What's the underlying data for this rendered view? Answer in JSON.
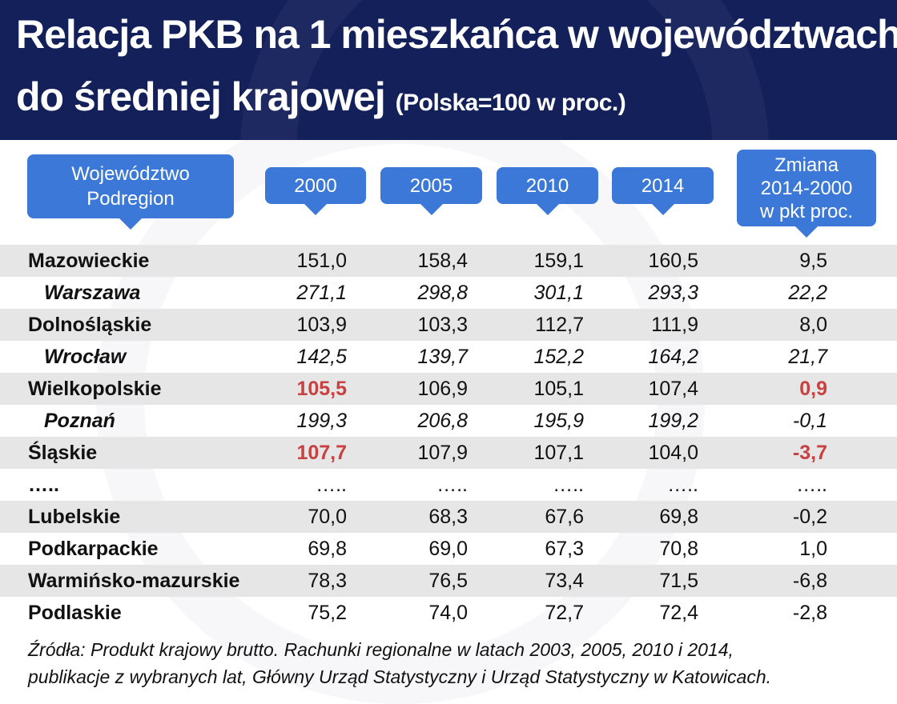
{
  "title_line1": "Relacja PKB na 1 mieszkańca w województwach",
  "title_line2": "do średniej krajowej",
  "subtitle": "(Polska=100 w proc.)",
  "colors": {
    "header_bg": "#14205a",
    "pill": "#3b78d8",
    "highlight": "#c94040",
    "row_shade": "#e6e6e6"
  },
  "headers": {
    "region": "Województwo\nPodregion",
    "y2000": "2000",
    "y2005": "2005",
    "y2010": "2010",
    "y2014": "2014",
    "change": "Zmiana\n2014-2000\nw pkt proc."
  },
  "chart_data": {
    "type": "table",
    "columns": [
      "Województwo Podregion",
      "2000",
      "2005",
      "2010",
      "2014",
      "Zmiana 2014-2000 w pkt proc."
    ],
    "rows": [
      {
        "name": "Mazowieckie",
        "sub": false,
        "shade": true,
        "values": [
          "151,0",
          "158,4",
          "159,1",
          "160,5",
          "9,5"
        ],
        "highlight": []
      },
      {
        "name": "Warszawa",
        "sub": true,
        "shade": false,
        "values": [
          "271,1",
          "298,8",
          "301,1",
          "293,3",
          "22,2"
        ],
        "highlight": []
      },
      {
        "name": "Dolnośląskie",
        "sub": false,
        "shade": true,
        "values": [
          "103,9",
          "103,3",
          "112,7",
          "111,9",
          "8,0"
        ],
        "highlight": []
      },
      {
        "name": "Wrocław",
        "sub": true,
        "shade": false,
        "values": [
          "142,5",
          "139,7",
          "152,2",
          "164,2",
          "21,7"
        ],
        "highlight": []
      },
      {
        "name": "Wielkopolskie",
        "sub": false,
        "shade": true,
        "values": [
          "105,5",
          "106,9",
          "105,1",
          "107,4",
          "0,9"
        ],
        "highlight": [
          0,
          4
        ]
      },
      {
        "name": "Poznań",
        "sub": true,
        "shade": false,
        "values": [
          "199,3",
          "206,8",
          "195,9",
          "199,2",
          "-0,1"
        ],
        "highlight": []
      },
      {
        "name": "Śląskie",
        "sub": false,
        "shade": true,
        "values": [
          "107,7",
          "107,9",
          "107,1",
          "104,0",
          "-3,7"
        ],
        "highlight": [
          0,
          4
        ]
      },
      {
        "name": "…..",
        "sub": false,
        "shade": false,
        "values": [
          "…..",
          "…..",
          "…..",
          "…..",
          "….."
        ],
        "highlight": []
      },
      {
        "name": "Lubelskie",
        "sub": false,
        "shade": true,
        "values": [
          "70,0",
          "68,3",
          "67,6",
          "69,8",
          "-0,2"
        ],
        "highlight": []
      },
      {
        "name": "Podkarpackie",
        "sub": false,
        "shade": false,
        "values": [
          "69,8",
          "69,0",
          "67,3",
          "70,8",
          "1,0"
        ],
        "highlight": []
      },
      {
        "name": "Warmińsko-mazurskie",
        "sub": false,
        "shade": true,
        "values": [
          "78,3",
          "76,5",
          "73,4",
          "71,5",
          "-6,8"
        ],
        "highlight": []
      },
      {
        "name": "Podlaskie",
        "sub": false,
        "shade": false,
        "values": [
          "75,2",
          "74,0",
          "72,7",
          "72,4",
          "-2,8"
        ],
        "highlight": []
      }
    ]
  },
  "source_line1": "Źródła: Produkt krajowy brutto. Rachunki regionalne w latach 2003, 2005, 2010 i 2014,",
  "source_line2": "publikacje z wybranych lat, Główny Urząd Statystyczny i Urząd Statystyczny w Katowicach."
}
